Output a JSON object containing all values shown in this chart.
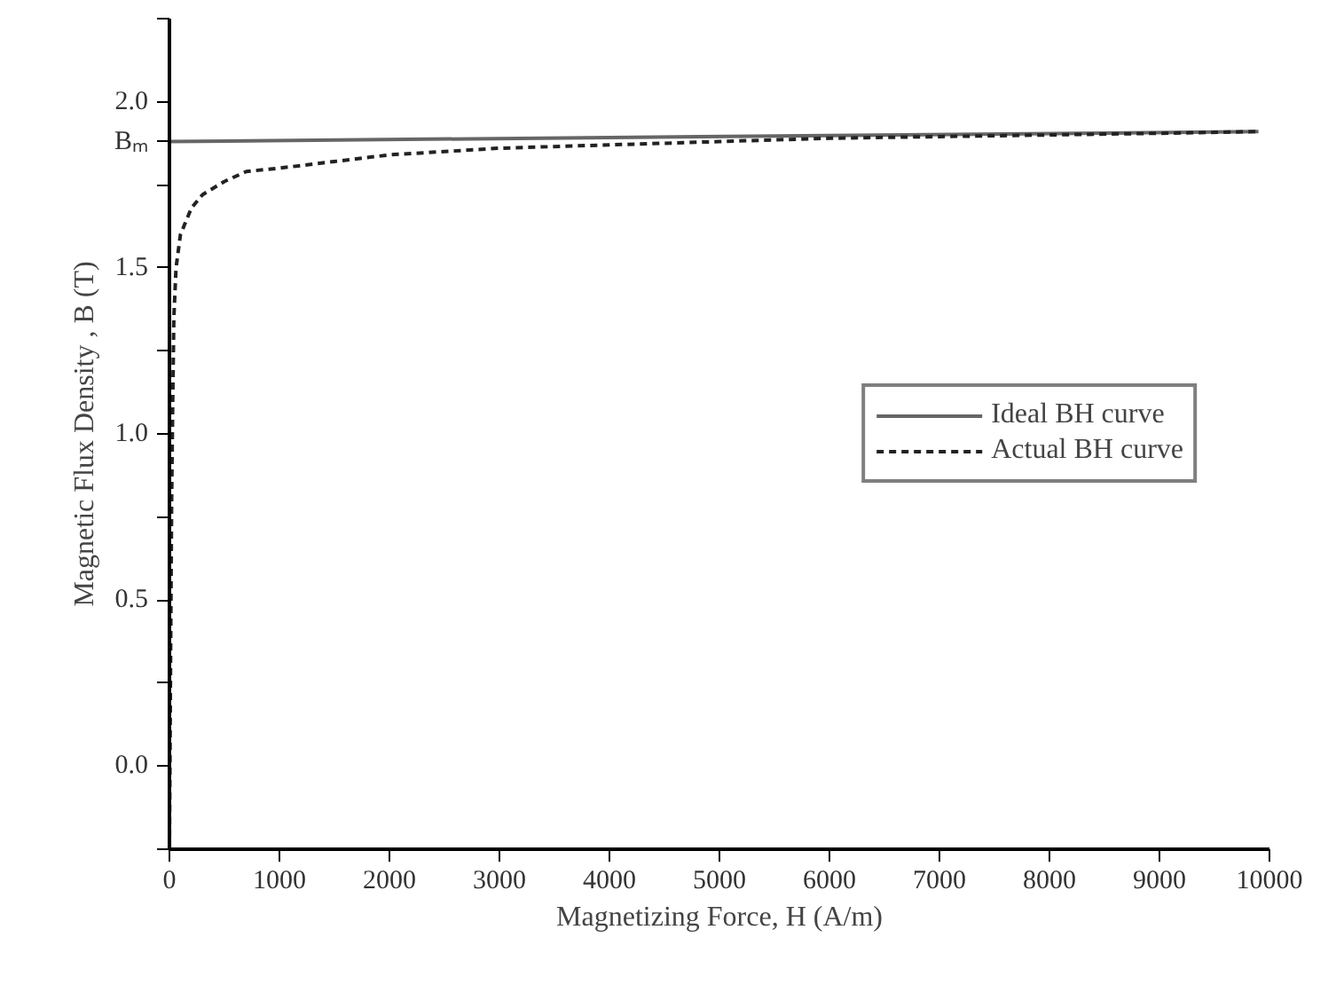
{
  "chart_data": {
    "type": "line",
    "xlabel": "Magnetizing Force, H (A/m)",
    "ylabel": "Magnetic Flux Density , B (T)",
    "xlim": [
      0,
      10000
    ],
    "ylim": [
      -0.25,
      2.25
    ],
    "xticks": [
      0,
      1000,
      2000,
      3000,
      4000,
      5000,
      6000,
      7000,
      8000,
      9000,
      10000
    ],
    "yticks": [
      {
        "value": -0.25,
        "label": null
      },
      {
        "value": 0,
        "label": "0.0"
      },
      {
        "value": 0.25,
        "label": null
      },
      {
        "value": 0.5,
        "label": "0.5"
      },
      {
        "value": 0.75,
        "label": null
      },
      {
        "value": 1,
        "label": "1.0"
      },
      {
        "value": 1.25,
        "label": null
      },
      {
        "value": 1.5,
        "label": "1.5"
      },
      {
        "value": 1.75,
        "label": null
      },
      {
        "value": 1.88,
        "label": "Bₘ"
      },
      {
        "value": 2,
        "label": "2.0"
      },
      {
        "value": 2.25,
        "label": null
      }
    ],
    "series": [
      {
        "name": "Ideal BH curve",
        "color": "#666666",
        "line_style": "solid",
        "x": [
          0,
          9900
        ],
        "values": [
          1.88,
          1.91
        ]
      },
      {
        "name": "Actual BH curve",
        "color": "#222222",
        "line_style": "dashed",
        "x": [
          0,
          10,
          20,
          30,
          40,
          60,
          100,
          200,
          300,
          500,
          700,
          1000,
          1500,
          2000,
          3000,
          4000,
          5000,
          6000,
          7000,
          8000,
          9000,
          9900
        ],
        "values": [
          -0.25,
          0.3,
          0.8,
          1.1,
          1.35,
          1.5,
          1.6,
          1.68,
          1.72,
          1.76,
          1.79,
          1.8,
          1.82,
          1.84,
          1.86,
          1.87,
          1.88,
          1.89,
          1.895,
          1.9,
          1.905,
          1.91
        ]
      }
    ],
    "legend": "right",
    "grid": false,
    "marker": "none"
  }
}
